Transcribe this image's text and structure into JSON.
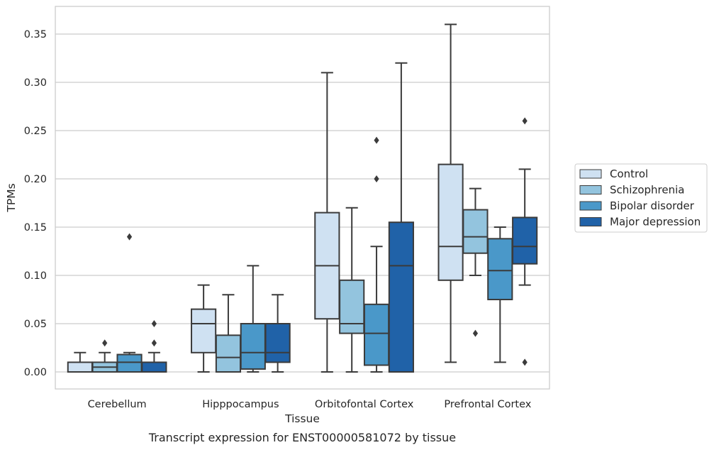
{
  "chart_data": {
    "type": "box",
    "xlabel": "Tissue",
    "ylabel": "TPMs",
    "caption": "Transcript expression for ENST00000581072 by tissue",
    "ylim": [
      -0.018,
      0.38
    ],
    "yticks": [
      "0.00",
      "0.05",
      "0.10",
      "0.15",
      "0.20",
      "0.25",
      "0.30",
      "0.35"
    ],
    "categories": [
      "Cerebellum",
      "Hipppocampus",
      "Orbitofontal Cortex",
      "Prefrontal Cortex"
    ],
    "grid": "horizontal",
    "legend_position": "right",
    "series": [
      {
        "name": "Control",
        "color": "#cfe1f2",
        "boxes": [
          {
            "whislo": 0.0,
            "q1": 0.0,
            "med": 0.0,
            "q3": 0.01,
            "whishi": 0.02,
            "fliers": []
          },
          {
            "whislo": 0.0,
            "q1": 0.02,
            "med": 0.05,
            "q3": 0.065,
            "whishi": 0.09,
            "fliers": []
          },
          {
            "whislo": 0.0,
            "q1": 0.055,
            "med": 0.11,
            "q3": 0.165,
            "whishi": 0.31,
            "fliers": []
          },
          {
            "whislo": 0.01,
            "q1": 0.095,
            "med": 0.13,
            "q3": 0.215,
            "whishi": 0.36,
            "fliers": []
          }
        ]
      },
      {
        "name": "Schizophrenia",
        "color": "#93c4de",
        "boxes": [
          {
            "whislo": 0.0,
            "q1": 0.0,
            "med": 0.005,
            "q3": 0.01,
            "whishi": 0.02,
            "fliers": [
              0.03
            ]
          },
          {
            "whislo": 0.0,
            "q1": 0.0,
            "med": 0.015,
            "q3": 0.038,
            "whishi": 0.08,
            "fliers": []
          },
          {
            "whislo": 0.0,
            "q1": 0.04,
            "med": 0.05,
            "q3": 0.095,
            "whishi": 0.17,
            "fliers": []
          },
          {
            "whislo": 0.1,
            "q1": 0.123,
            "med": 0.14,
            "q3": 0.168,
            "whishi": 0.19,
            "fliers": [
              0.04
            ]
          }
        ]
      },
      {
        "name": "Bipolar disorder",
        "color": "#4a98c9",
        "boxes": [
          {
            "whislo": 0.0,
            "q1": 0.0,
            "med": 0.01,
            "q3": 0.018,
            "whishi": 0.02,
            "fliers": [
              0.14
            ]
          },
          {
            "whislo": 0.0,
            "q1": 0.003,
            "med": 0.02,
            "q3": 0.05,
            "whishi": 0.11,
            "fliers": []
          },
          {
            "whislo": 0.0,
            "q1": 0.007,
            "med": 0.04,
            "q3": 0.07,
            "whishi": 0.13,
            "fliers": [
              0.2,
              0.24
            ]
          },
          {
            "whislo": 0.01,
            "q1": 0.075,
            "med": 0.105,
            "q3": 0.138,
            "whishi": 0.15,
            "fliers": []
          }
        ]
      },
      {
        "name": "Major depression",
        "color": "#2062a8",
        "boxes": [
          {
            "whislo": 0.0,
            "q1": 0.0,
            "med": 0.0,
            "q3": 0.01,
            "whishi": 0.02,
            "fliers": [
              0.03,
              0.05
            ]
          },
          {
            "whislo": 0.0,
            "q1": 0.01,
            "med": 0.02,
            "q3": 0.05,
            "whishi": 0.08,
            "fliers": []
          },
          {
            "whislo": 0.0,
            "q1": 0.0,
            "med": 0.11,
            "q3": 0.155,
            "whishi": 0.32,
            "fliers": []
          },
          {
            "whislo": 0.09,
            "q1": 0.112,
            "med": 0.13,
            "q3": 0.16,
            "whishi": 0.21,
            "fliers": [
              0.01,
              0.26
            ]
          }
        ]
      }
    ]
  }
}
